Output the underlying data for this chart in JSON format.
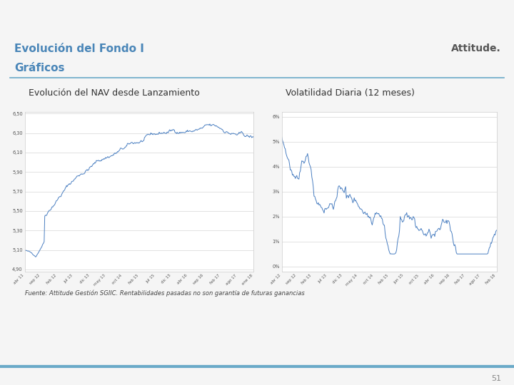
{
  "title_line1": "Evolución del Fondo I",
  "title_line2": "Gráficos",
  "brand": "Attitude.",
  "header_bar_color": "#5ba3d0",
  "header_text_color": "#4a86b8",
  "divider_color": "#6aaac8",
  "subtitle1": "Evolución del NAV desde Lanzamiento",
  "subtitle2": "Volatilidad Diaria (12 meses)",
  "subtitle_color": "#333333",
  "footer_text": "Fuente: Attitude Gestión SGIIC. Rentabilidades pasadas no son garantía de futuras ganancias",
  "page_number": "51",
  "bg_color": "#f5f5f5",
  "chart_line_color": "#4a7fc1",
  "chart_bg_color": "#ffffff",
  "nav_yticks_labels": [
    "4,90",
    "5,10",
    "5,30",
    "5,50",
    "5,70",
    "5,90",
    "6,10",
    "6,30",
    "6,50"
  ],
  "nav_yvalues": [
    4.9,
    5.1,
    5.3,
    5.5,
    5.7,
    5.9,
    6.1,
    6.3,
    6.5
  ],
  "nav_xticks": [
    "abr 11",
    "sep 12",
    "feb 12",
    "jul 13",
    "dic 13",
    "may 13",
    "oct 14",
    "feb 15",
    "jul 15",
    "dic 15",
    "abr 16",
    "sep 16",
    "feb 17",
    "ago 17",
    "ene 18"
  ],
  "vol_yticks_labels": [
    "0%",
    "1%",
    "2%",
    "3%",
    "4%",
    "5%",
    "6%"
  ],
  "vol_yvalues": [
    0.0,
    0.01,
    0.02,
    0.03,
    0.04,
    0.05,
    0.06
  ],
  "vol_xticks": [
    "abr 12",
    "sep 12",
    "feb 13",
    "jul 13",
    "dic 13",
    "may 14",
    "oct 14",
    "feb 15",
    "jun 15",
    "oct 15",
    "abr 16",
    "sep 16",
    "feb 17",
    "ago 17",
    "feb 18"
  ],
  "bottom_bar_color": "#6aaac8"
}
